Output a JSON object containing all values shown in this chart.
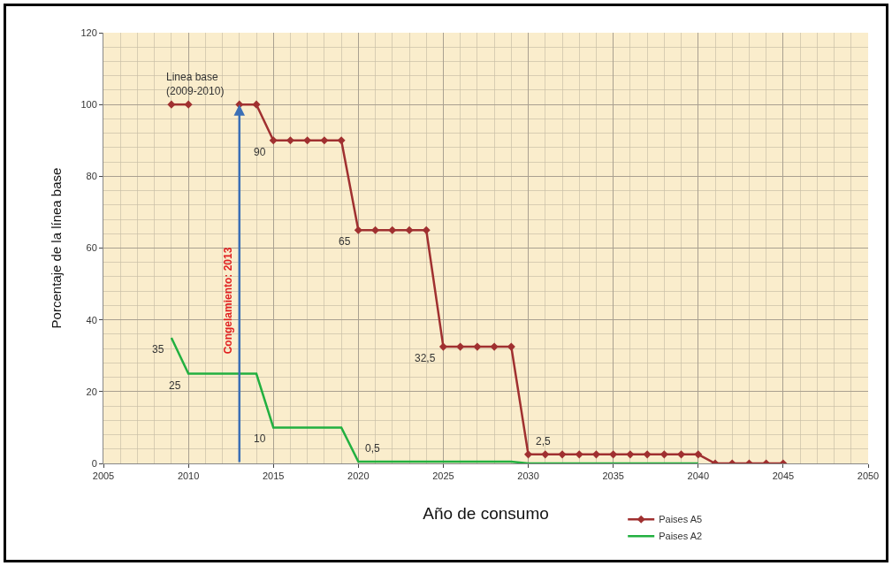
{
  "chart_data": {
    "type": "line",
    "xlabel": "Año de consumo",
    "ylabel": "Porcentaje de la línea base",
    "xlim": [
      2005,
      2050
    ],
    "xticks": [
      2005,
      2010,
      2015,
      2020,
      2025,
      2030,
      2035,
      2040,
      2045,
      2050
    ],
    "ylim": [
      0,
      120
    ],
    "yticks": [
      0,
      20,
      40,
      60,
      80,
      100,
      120
    ],
    "grid": true,
    "legend": "bottom right",
    "ref_lines": [
      {
        "axis": "x",
        "value": 2013,
        "label": "Congelamiento: 2013",
        "color": "#3b6fb6"
      }
    ],
    "series": [
      {
        "name": "Paises A5",
        "color": "#a03030",
        "marker": "diamond",
        "x": [
          2009,
          2010,
          2011,
          2012,
          2013,
          2014,
          2015,
          2016,
          2017,
          2018,
          2019,
          2020,
          2021,
          2022,
          2023,
          2024,
          2025,
          2026,
          2027,
          2028,
          2029,
          2030,
          2031,
          2032,
          2033,
          2034,
          2035,
          2036,
          2037,
          2038,
          2039,
          2040,
          2041,
          2042,
          2043,
          2044,
          2045
        ],
        "values": [
          100,
          100,
          null,
          null,
          100,
          100,
          90,
          90,
          90,
          90,
          90,
          65,
          65,
          65,
          65,
          65,
          32.5,
          32.5,
          32.5,
          32.5,
          32.5,
          2.5,
          2.5,
          2.5,
          2.5,
          2.5,
          2.5,
          2.5,
          2.5,
          2.5,
          2.5,
          2.5,
          0,
          0,
          0,
          0,
          0
        ]
      },
      {
        "name": "Paises A2",
        "color": "#22b040",
        "marker": "none",
        "x": [
          2009,
          2010,
          2014,
          2015,
          2019,
          2020,
          2029,
          2030,
          2040
        ],
        "values": [
          35,
          25,
          25,
          10,
          10,
          0.5,
          0.5,
          0,
          0
        ]
      }
    ],
    "annotations": [
      {
        "text": "Linea base\n(2009-2010)",
        "x": 2009,
        "y": 100
      },
      {
        "text": "90",
        "x": 2015,
        "y": 90
      },
      {
        "text": "65",
        "x": 2020,
        "y": 65
      },
      {
        "text": "32,5",
        "x": 2025,
        "y": 32.5
      },
      {
        "text": "2,5",
        "x": 2030,
        "y": 2.5
      },
      {
        "text": "35",
        "x": 2009,
        "y": 35
      },
      {
        "text": "25",
        "x": 2010,
        "y": 25
      },
      {
        "text": "10",
        "x": 2015,
        "y": 10
      },
      {
        "text": "0,5",
        "x": 2020,
        "y": 0.5
      }
    ]
  }
}
